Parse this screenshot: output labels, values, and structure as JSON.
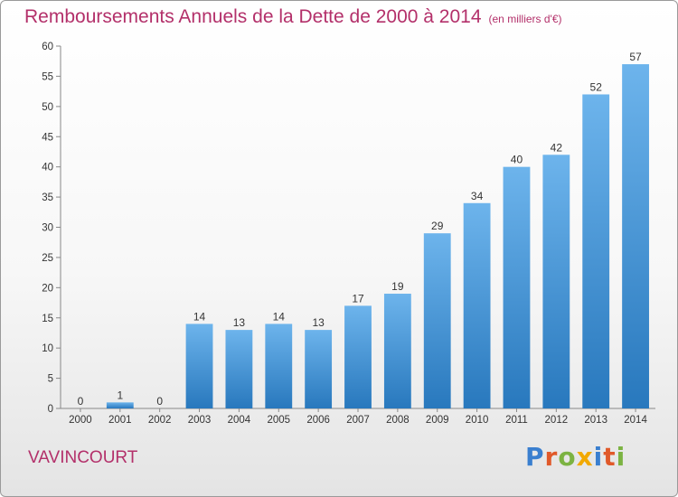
{
  "header": {
    "title": "Remboursements Annuels de la Dette de 2000 à 2014",
    "subtitle": "(en milliers d'€)"
  },
  "footer": {
    "commune": "VAVINCOURT",
    "logo_text": "Proxiti",
    "logo_letters": [
      {
        "ch": "P",
        "color": "#3a7fcf"
      },
      {
        "ch": "r",
        "color": "#e0592a"
      },
      {
        "ch": "o",
        "color": "#7cb342"
      },
      {
        "ch": "x",
        "color": "#f2a900"
      },
      {
        "ch": "i",
        "color": "#3a7fcf"
      },
      {
        "ch": "t",
        "color": "#e0592a"
      },
      {
        "ch": "i",
        "color": "#7cb342"
      }
    ]
  },
  "chart_data": {
    "type": "bar",
    "title": "Remboursements Annuels de la Dette de 2000 à 2014",
    "subtitle": "(en milliers d'€)",
    "categories": [
      "2000",
      "2001",
      "2002",
      "2003",
      "2004",
      "2005",
      "2006",
      "2007",
      "2008",
      "2009",
      "2010",
      "2011",
      "2012",
      "2013",
      "2014"
    ],
    "values": [
      0,
      1,
      0,
      14,
      13,
      14,
      13,
      17,
      19,
      29,
      34,
      40,
      42,
      52,
      57
    ],
    "ylim": [
      0,
      60
    ],
    "yticks": [
      0,
      5,
      10,
      15,
      20,
      25,
      30,
      35,
      40,
      45,
      50,
      55,
      60
    ],
    "grid": false,
    "xlabel": "",
    "ylabel": "",
    "bar_color_top": "#6db4ec",
    "bar_color_bottom": "#2878bd"
  }
}
